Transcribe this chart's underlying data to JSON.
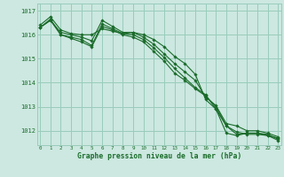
{
  "xlabel": "Graphe pression niveau de la mer (hPa)",
  "bg_color": "#cce8e0",
  "grid_color": "#99ccbb",
  "line_color": "#1a6b2a",
  "marker_color": "#1a6b2a",
  "ylim": [
    1011.4,
    1017.3
  ],
  "yticks": [
    1012,
    1013,
    1014,
    1015,
    1016,
    1017
  ],
  "xlim": [
    -0.3,
    23.3
  ],
  "xticks": [
    0,
    1,
    2,
    3,
    4,
    5,
    6,
    7,
    8,
    9,
    10,
    11,
    12,
    13,
    14,
    15,
    16,
    17,
    18,
    19,
    20,
    21,
    22,
    23
  ],
  "series": [
    [
      1016.4,
      1016.75,
      1016.2,
      1016.05,
      1016.0,
      1016.0,
      1016.25,
      1016.15,
      1016.05,
      1016.1,
      1016.0,
      1015.8,
      1015.5,
      1015.1,
      1014.8,
      1014.35,
      1013.3,
      1012.9,
      1011.9,
      1011.8,
      1011.9,
      1011.9,
      1011.8,
      1011.7
    ],
    [
      1016.3,
      1016.6,
      1016.1,
      1016.0,
      1015.9,
      1015.75,
      1016.6,
      1016.35,
      1016.1,
      1016.1,
      1015.9,
      1015.6,
      1015.2,
      1014.8,
      1014.45,
      1014.1,
      1013.4,
      1013.05,
      1012.3,
      1012.2,
      1012.0,
      1012.0,
      1011.9,
      1011.75
    ],
    [
      1016.3,
      1016.6,
      1016.0,
      1015.85,
      1015.7,
      1015.5,
      1016.35,
      1016.2,
      1016.0,
      1015.9,
      1015.7,
      1015.3,
      1014.9,
      1014.4,
      1014.1,
      1013.75,
      1013.45,
      1013.0,
      1012.2,
      1011.95,
      1011.85,
      1011.85,
      1011.8,
      1011.6
    ],
    [
      1016.3,
      1016.65,
      1016.0,
      1015.9,
      1015.8,
      1015.55,
      1016.45,
      1016.25,
      1016.05,
      1016.0,
      1015.8,
      1015.45,
      1015.05,
      1014.6,
      1014.2,
      1013.8,
      1013.5,
      1012.9,
      1012.2,
      1011.85,
      1011.9,
      1011.9,
      1011.85,
      1011.65
    ]
  ]
}
